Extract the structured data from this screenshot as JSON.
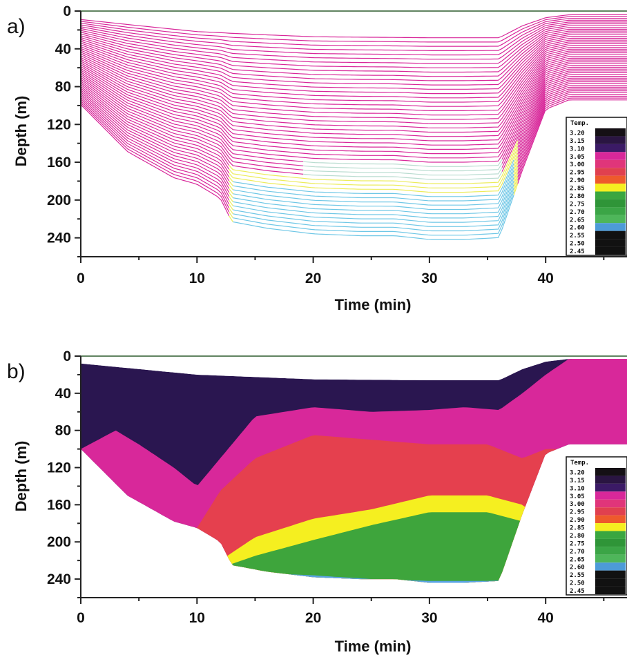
{
  "chart_data": [
    {
      "panel": "a)",
      "type": "line",
      "xlabel": "Time (min)",
      "ylabel": "Depth (m)",
      "xlim": [
        0,
        47
      ],
      "ylim": [
        260,
        0
      ],
      "xticks": [
        0,
        10,
        20,
        30,
        40
      ],
      "yticks": [
        0,
        40,
        80,
        120,
        160,
        200,
        240
      ],
      "surface": {
        "x": [
          0,
          10,
          20,
          30,
          36,
          38,
          40,
          42,
          47
        ],
        "y": [
          8,
          20,
          25,
          26,
          26,
          14,
          6,
          3,
          3
        ]
      },
      "bottom": {
        "x": [
          0,
          4,
          8,
          10,
          12,
          13,
          16,
          20,
          24,
          27,
          30,
          33,
          36,
          38,
          40,
          42,
          47
        ],
        "y": [
          100,
          150,
          178,
          185,
          200,
          225,
          232,
          238,
          240,
          240,
          244,
          244,
          242,
          170,
          105,
          95,
          95
        ]
      },
      "contour_count": 48,
      "legend": {
        "title": "Temp.",
        "levels": [
          "3.20",
          "3.15",
          "3.10",
          "3.05",
          "3.00",
          "2.95",
          "2.90",
          "2.85",
          "2.80",
          "2.75",
          "2.70",
          "2.65",
          "2.60",
          "2.55",
          "2.50",
          "2.45"
        ],
        "colors": [
          "#151015",
          "#2a1542",
          "#3b1a66",
          "#d8289a",
          "#e0357a",
          "#e0404f",
          "#ee5a2c",
          "#f5ef20",
          "#3aa640",
          "#2f9538",
          "#3ba546",
          "#4eb65a",
          "#4d9bd8",
          "#111111",
          "#111111",
          "#111111"
        ]
      }
    },
    {
      "panel": "b)",
      "type": "heatmap",
      "xlabel": "Time (min)",
      "ylabel": "Depth (m)",
      "xlim": [
        0,
        47
      ],
      "ylim": [
        260,
        0
      ],
      "xticks": [
        0,
        10,
        20,
        30,
        40
      ],
      "yticks": [
        0,
        40,
        80,
        120,
        160,
        200,
        240
      ],
      "surface": {
        "x": [
          0,
          10,
          20,
          30,
          36,
          38,
          40,
          42,
          47
        ],
        "y": [
          8,
          20,
          25,
          26,
          26,
          14,
          6,
          3,
          3
        ]
      },
      "bottom": {
        "x": [
          0,
          4,
          8,
          10,
          12,
          13,
          16,
          20,
          24,
          27,
          30,
          33,
          36,
          38,
          40,
          42,
          47
        ],
        "y": [
          100,
          150,
          178,
          185,
          200,
          225,
          232,
          238,
          240,
          240,
          244,
          244,
          242,
          170,
          105,
          95,
          95
        ]
      },
      "layers": [
        {
          "color": "#2a1650",
          "x": [
            0,
            10,
            20,
            30,
            36,
            38,
            40,
            42,
            47
          ],
          "y": [
            8,
            20,
            25,
            26,
            26,
            14,
            6,
            3,
            3
          ]
        },
        {
          "color": "#d8289a",
          "x": [
            0,
            3,
            5,
            8,
            10,
            12,
            15,
            20,
            25,
            30,
            33,
            36,
            38,
            40,
            42,
            47
          ],
          "y": [
            100,
            80,
            95,
            120,
            140,
            110,
            65,
            55,
            60,
            58,
            55,
            58,
            40,
            20,
            3,
            3
          ]
        },
        {
          "color": "#e5404e",
          "x": [
            0,
            8,
            10,
            12,
            15,
            20,
            25,
            30,
            35,
            38,
            40,
            47
          ],
          "y": [
            200,
            200,
            185,
            145,
            110,
            85,
            90,
            95,
            95,
            110,
            100,
            100
          ]
        },
        {
          "color": "#f5ef20",
          "x": [
            0,
            10,
            12,
            15,
            20,
            25,
            30,
            35,
            38,
            40,
            47
          ],
          "y": [
            260,
            260,
            220,
            195,
            175,
            165,
            150,
            150,
            160,
            180,
            180
          ]
        },
        {
          "color": "#3ea53c",
          "x": [
            0,
            10,
            12,
            15,
            20,
            25,
            30,
            35,
            38,
            40,
            47
          ],
          "y": [
            260,
            260,
            228,
            215,
            198,
            182,
            168,
            168,
            178,
            195,
            195
          ]
        },
        {
          "color": "#5aa3e3",
          "x": [
            0,
            10,
            13,
            20,
            25,
            30,
            35,
            40,
            47
          ],
          "y": [
            260,
            260,
            232,
            236,
            240,
            242,
            242,
            240,
            240
          ]
        },
        {
          "color": "#141018",
          "x": [
            0,
            22,
            24,
            26,
            28,
            30,
            32,
            34,
            47
          ],
          "y": [
            260,
            260,
            244,
            242,
            243,
            248,
            249,
            260,
            260
          ]
        }
      ],
      "legend": {
        "title": "Temp.",
        "levels": [
          "3.20",
          "3.15",
          "3.10",
          "3.05",
          "3.00",
          "2.95",
          "2.90",
          "2.85",
          "2.80",
          "2.75",
          "2.70",
          "2.65",
          "2.60",
          "2.55",
          "2.50",
          "2.45"
        ],
        "colors": [
          "#151015",
          "#2a1542",
          "#3b1a66",
          "#d8289a",
          "#e0357a",
          "#e0404f",
          "#ee5a2c",
          "#f5ef20",
          "#3aa640",
          "#2f9538",
          "#3ba546",
          "#4eb65a",
          "#4d9bd8",
          "#111111",
          "#111111",
          "#111111"
        ]
      }
    }
  ]
}
